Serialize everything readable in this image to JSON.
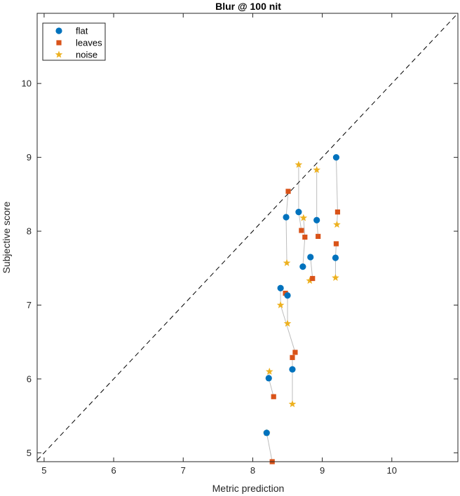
{
  "chart_data": {
    "type": "scatter",
    "title": "Blur @ 100 nit",
    "xlabel": "Metric prediction",
    "ylabel": "Subjective score",
    "xlim": [
      4.9,
      10.95
    ],
    "ylim": [
      4.88,
      10.95
    ],
    "xticks": [
      5,
      6,
      7,
      8,
      9,
      10
    ],
    "yticks": [
      5,
      6,
      7,
      8,
      9,
      10
    ],
    "grid": false,
    "legend_position": "top-left",
    "reference_line": {
      "style": "dashed",
      "color": "#000000",
      "from": [
        4.9,
        4.9
      ],
      "to": [
        10.95,
        10.95
      ]
    },
    "series": [
      {
        "name": "flat",
        "marker": "circle",
        "color": "#0072BD",
        "points": [
          [
            8.2,
            5.27
          ],
          [
            8.23,
            6.01
          ],
          [
            8.57,
            6.13
          ],
          [
            8.4,
            7.23
          ],
          [
            8.5,
            7.13
          ],
          [
            8.48,
            8.19
          ],
          [
            8.66,
            8.26
          ],
          [
            8.72,
            7.52
          ],
          [
            8.83,
            7.65
          ],
          [
            8.92,
            8.15
          ],
          [
            9.19,
            7.64
          ],
          [
            9.2,
            9.0
          ]
        ]
      },
      {
        "name": "leaves",
        "marker": "square",
        "color": "#D95319",
        "points": [
          [
            8.28,
            4.88
          ],
          [
            8.3,
            5.76
          ],
          [
            8.57,
            6.29
          ],
          [
            8.61,
            6.36
          ],
          [
            8.47,
            7.16
          ],
          [
            8.51,
            8.54
          ],
          [
            8.7,
            8.01
          ],
          [
            8.75,
            7.92
          ],
          [
            8.86,
            7.36
          ],
          [
            8.94,
            7.93
          ],
          [
            9.2,
            7.83
          ],
          [
            9.22,
            8.26
          ]
        ]
      },
      {
        "name": "noise",
        "marker": "star",
        "color": "#EDB120",
        "points": [
          [
            8.2,
            5.27
          ],
          [
            8.24,
            6.1
          ],
          [
            8.57,
            5.66
          ],
          [
            8.4,
            7.0
          ],
          [
            8.5,
            6.75
          ],
          [
            8.49,
            7.57
          ],
          [
            8.66,
            8.9
          ],
          [
            8.73,
            8.18
          ],
          [
            8.82,
            7.33
          ],
          [
            8.92,
            8.83
          ],
          [
            9.19,
            7.37
          ],
          [
            9.21,
            8.09
          ]
        ]
      }
    ],
    "connector_color": "#BDBDBD"
  }
}
